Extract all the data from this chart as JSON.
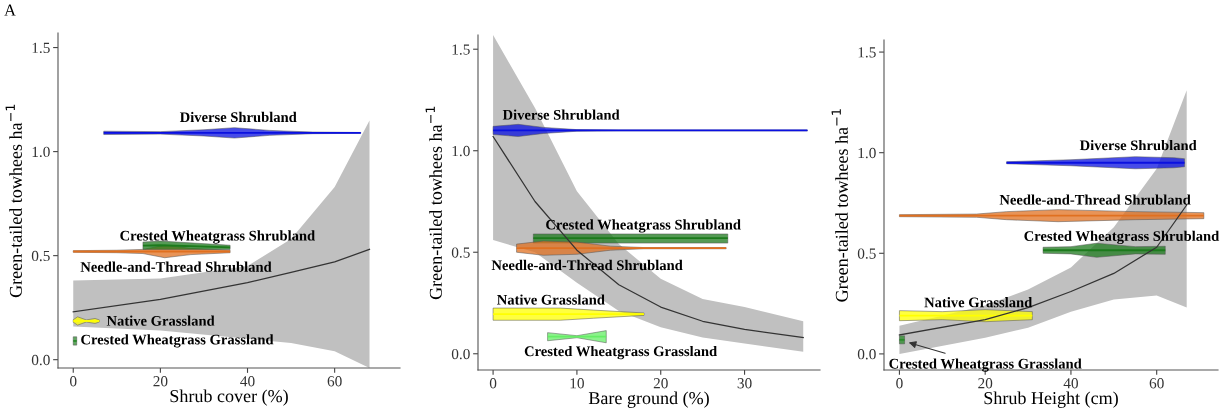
{
  "chart_data": [
    {
      "type": "line",
      "xlabel": "Shrub cover (%)",
      "ylabel": "Green-tailed towhees ha$^{−1}$",
      "xlim": [
        -3.5,
        75
      ],
      "ylim": [
        -0.04,
        1.57
      ],
      "xticks": [
        0,
        20,
        40,
        60
      ],
      "yticks": [
        {
          "value": 0,
          "label": "0.0"
        },
        {
          "value": 0.5,
          "label": "0.5"
        },
        {
          "value": 1,
          "label": "1.0"
        },
        {
          "value": 1.5,
          "label": "1.5"
        }
      ],
      "grid": false,
      "series": [
        {
          "color": "#333333",
          "x": [
            0,
            20,
            40,
            50,
            60,
            68
          ],
          "values": [
            0.23,
            0.29,
            0.37,
            0.42,
            0.47,
            0.53
          ],
          "lower": [
            0.16,
            0.14,
            0.1,
            0.08,
            0.04,
            -0.04
          ],
          "upper": [
            0.38,
            0.39,
            0.45,
            0.58,
            0.83,
            1.15
          ]
        },
        {
          "name": "Diverse Shrubland",
          "color": "#0a10e0",
          "x": [
            7,
            20,
            30,
            37,
            45,
            55,
            66
          ],
          "values": [
            1.09,
            1.09,
            1.09,
            1.09,
            1.09,
            1.09,
            1.09
          ],
          "lower": [
            1.082,
            1.084,
            1.075,
            1.065,
            1.078,
            1.086,
            1.088
          ],
          "upper": [
            1.098,
            1.096,
            1.105,
            1.115,
            1.102,
            1.094,
            1.092
          ]
        },
        {
          "name": "Needle-and-Thread Shrubland",
          "color": "#e07020",
          "x": [
            0,
            10,
            16,
            21,
            27,
            36
          ],
          "values": [
            0.52,
            0.52,
            0.52,
            0.52,
            0.52,
            0.52
          ],
          "lower": [
            0.516,
            0.514,
            0.51,
            0.49,
            0.505,
            0.514
          ],
          "upper": [
            0.524,
            0.526,
            0.53,
            0.55,
            0.535,
            0.526
          ]
        },
        {
          "name": "Crested Wheatgrass Shrubland",
          "color": "#1c7a1c",
          "x": [
            16,
            20,
            36
          ],
          "values": [
            0.548,
            0.55,
            0.54
          ],
          "lower": [
            0.53,
            0.53,
            0.53
          ],
          "upper": [
            0.565,
            0.57,
            0.55
          ]
        },
        {
          "name": "Native Grassland",
          "color": "#ffff00",
          "x": [
            0,
            1,
            3,
            5,
            6
          ],
          "values": [
            0.186,
            0.186,
            0.186,
            0.186,
            0.186
          ],
          "lower": [
            0.18,
            0.166,
            0.181,
            0.174,
            0.181
          ],
          "upper": [
            0.192,
            0.206,
            0.191,
            0.198,
            0.191
          ]
        },
        {
          "name": "Crested Wheatgrass Grassland",
          "color": "#2a8a2a",
          "x": [
            0,
            0.8
          ],
          "values": [
            0.09,
            0.09
          ],
          "lower": [
            0.07,
            0.07
          ],
          "upper": [
            0.11,
            0.11
          ]
        }
      ],
      "annotations": [
        "A"
      ]
    },
    {
      "type": "line",
      "xlabel": "Bare ground (%)",
      "ylabel": "Green-tailed towhees ha$^{−1}$",
      "xlim": [
        -1.8,
        39
      ],
      "ylim": [
        -0.08,
        1.57
      ],
      "xticks": [
        0,
        10,
        20,
        30
      ],
      "yticks": [
        {
          "value": 0,
          "label": "0.0"
        },
        {
          "value": 0.5,
          "label": "0.5"
        },
        {
          "value": 1,
          "label": "1.0"
        },
        {
          "value": 1.5,
          "label": "1.5"
        }
      ],
      "grid": false,
      "series": [
        {
          "color": "#333333",
          "x": [
            0,
            5,
            10,
            15,
            20,
            25,
            30,
            37
          ],
          "values": [
            1.07,
            0.75,
            0.51,
            0.34,
            0.23,
            0.16,
            0.12,
            0.08
          ],
          "lower": [
            0.56,
            0.5,
            0.35,
            0.21,
            0.13,
            0.08,
            0.05,
            0.01
          ],
          "upper": [
            1.57,
            1.21,
            0.8,
            0.54,
            0.37,
            0.27,
            0.23,
            0.16
          ]
        },
        {
          "name": "Diverse Shrubland",
          "color": "#0a10e0",
          "x": [
            0,
            3,
            6,
            10,
            15,
            37.5
          ],
          "values": [
            1.1,
            1.1,
            1.1,
            1.1,
            1.1,
            1.1
          ],
          "lower": [
            1.08,
            1.07,
            1.085,
            1.096,
            1.098,
            1.098
          ],
          "upper": [
            1.12,
            1.13,
            1.115,
            1.104,
            1.102,
            1.102
          ]
        },
        {
          "name": "Crested Wheatgrass Shrubland",
          "color": "#1c7a1c",
          "x": [
            4.8,
            28
          ],
          "values": [
            0.57,
            0.57
          ],
          "lower": [
            0.545,
            0.545
          ],
          "upper": [
            0.59,
            0.59
          ]
        },
        {
          "name": "Needle-and-Thread Shrubland",
          "color": "#e07020",
          "x": [
            2.8,
            6,
            10,
            14,
            18,
            27.8
          ],
          "values": [
            0.52,
            0.52,
            0.52,
            0.52,
            0.52,
            0.52
          ],
          "lower": [
            0.5,
            0.485,
            0.49,
            0.51,
            0.517,
            0.517
          ],
          "upper": [
            0.54,
            0.555,
            0.55,
            0.53,
            0.523,
            0.523
          ]
        },
        {
          "name": "Native Grassland",
          "color": "#ffff00",
          "x": [
            0,
            8,
            12,
            18
          ],
          "values": [
            0.195,
            0.195,
            0.195,
            0.195
          ],
          "lower": [
            0.165,
            0.165,
            0.175,
            0.189
          ],
          "upper": [
            0.225,
            0.225,
            0.215,
            0.201
          ]
        },
        {
          "name": "Crested Wheatgrass Grassland",
          "color": "#66ee66",
          "x": [
            6.5,
            10,
            13.5
          ],
          "values": [
            0.084,
            0.084,
            0.084
          ],
          "lower": [
            0.064,
            0.079,
            0.054
          ],
          "upper": [
            0.104,
            0.089,
            0.114
          ]
        }
      ]
    },
    {
      "type": "line",
      "xlabel": "Shrub Height (cm)",
      "ylabel": "Green-tailed towhees ha$^{−1}$",
      "xlim": [
        -3.6,
        74.3
      ],
      "ylim": [
        -0.08,
        1.56
      ],
      "xticks": [
        0,
        20,
        40,
        60
      ],
      "yticks": [
        {
          "value": 0,
          "label": "0.0"
        },
        {
          "value": 0.5,
          "label": "0.5"
        },
        {
          "value": 1,
          "label": "1.0"
        },
        {
          "value": 1.5,
          "label": "1.5"
        }
      ],
      "grid": false,
      "series": [
        {
          "color": "#333333",
          "x": [
            0,
            20,
            30,
            40,
            50,
            60,
            67
          ],
          "values": [
            0.094,
            0.17,
            0.23,
            0.31,
            0.4,
            0.53,
            0.74
          ],
          "lower": [
            0.0,
            0.08,
            0.13,
            0.21,
            0.27,
            0.29,
            0.23
          ],
          "upper": [
            0.14,
            0.24,
            0.32,
            0.43,
            0.63,
            0.92,
            1.31
          ]
        },
        {
          "name": "Diverse Shrubland",
          "color": "#0a10e0",
          "x": [
            25,
            40,
            55,
            64,
            66.5
          ],
          "values": [
            0.95,
            0.95,
            0.95,
            0.95,
            0.95
          ],
          "lower": [
            0.945,
            0.935,
            0.92,
            0.925,
            0.93
          ],
          "upper": [
            0.955,
            0.965,
            0.98,
            0.975,
            0.97
          ]
        },
        {
          "name": "Needle-and-Thread Shrubland",
          "color": "#e07020",
          "x": [
            0,
            18,
            25,
            37,
            55,
            71
          ],
          "values": [
            0.687,
            0.687,
            0.687,
            0.687,
            0.687,
            0.687
          ],
          "lower": [
            0.682,
            0.679,
            0.667,
            0.657,
            0.667,
            0.672
          ],
          "upper": [
            0.692,
            0.695,
            0.707,
            0.717,
            0.707,
            0.702
          ]
        },
        {
          "name": "Crested Wheatgrass Shrubland",
          "color": "#1c7a1c",
          "x": [
            33.5,
            40,
            46,
            55,
            62
          ],
          "values": [
            0.515,
            0.515,
            0.515,
            0.515,
            0.515
          ],
          "lower": [
            0.5,
            0.497,
            0.48,
            0.497,
            0.495
          ],
          "upper": [
            0.53,
            0.533,
            0.55,
            0.533,
            0.535
          ]
        },
        {
          "name": "Native Grassland",
          "color": "#ffff00",
          "x": [
            0,
            10,
            20,
            31
          ],
          "values": [
            0.19,
            0.19,
            0.19,
            0.19
          ],
          "lower": [
            0.165,
            0.17,
            0.16,
            0.17
          ],
          "upper": [
            0.215,
            0.21,
            0.22,
            0.21
          ]
        },
        {
          "name": "Crested Wheatgrass Grassland",
          "color": "#2a8a2a",
          "x": [
            0,
            1.2
          ],
          "values": [
            0.07,
            0.07
          ],
          "lower": [
            0.05,
            0.05
          ],
          "upper": [
            0.09,
            0.09
          ]
        }
      ]
    }
  ]
}
